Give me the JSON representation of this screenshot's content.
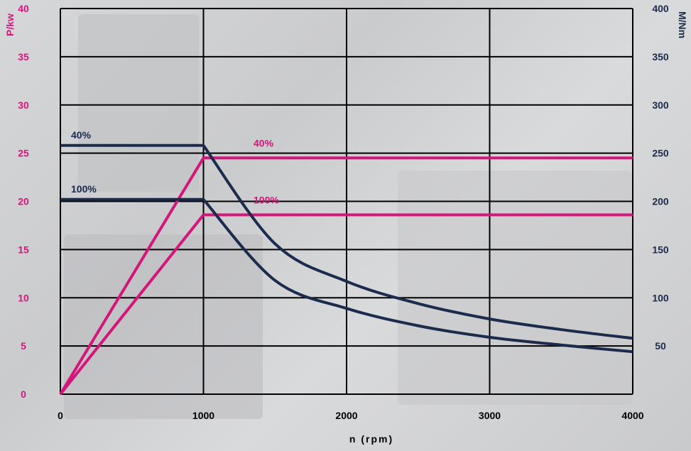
{
  "colors": {
    "power": "#d4167a",
    "torque": "#1a2b4c",
    "grid": "#000000"
  },
  "chart_data": {
    "type": "line",
    "title": "",
    "xlabel": "n (rpm)",
    "ylabel_left": "P/kw",
    "ylabel_right": "M/Nm",
    "xlim": [
      0,
      4000
    ],
    "ylim_left": [
      0,
      40
    ],
    "ylim_right": [
      0,
      400
    ],
    "x_ticks": [
      "0",
      "1000",
      "2000",
      "3000",
      "4000"
    ],
    "y_left_ticks": [
      "0",
      "5",
      "10",
      "15",
      "20",
      "25",
      "30",
      "35",
      "40"
    ],
    "y_right_ticks": [
      "50",
      "100",
      "150",
      "200",
      "250",
      "300",
      "350",
      "400"
    ],
    "grid": true,
    "series": [
      {
        "name": "40%",
        "axis": "left",
        "color": "#d4167a",
        "x": [
          0,
          1000,
          4000
        ],
        "y": [
          0,
          24.5,
          24.5
        ]
      },
      {
        "name": "100%",
        "axis": "left",
        "color": "#d4167a",
        "x": [
          0,
          1000,
          4000
        ],
        "y": [
          0,
          18.6,
          18.6
        ]
      },
      {
        "name": "40%",
        "axis": "right",
        "color": "#1a2b4c",
        "x": [
          0,
          1000,
          1500,
          2000,
          2500,
          3000,
          3500,
          4000
        ],
        "y": [
          258,
          258,
          156,
          117,
          94,
          78,
          67,
          58
        ]
      },
      {
        "name": "100%",
        "axis": "right",
        "color": "#1a2b4c",
        "x": [
          0,
          1000,
          1500,
          2000,
          2500,
          3000,
          3500,
          4000
        ],
        "y": [
          202,
          202,
          118,
          89,
          71,
          59,
          51,
          44
        ]
      }
    ],
    "annotations": [
      {
        "text": "40%",
        "series": 2
      },
      {
        "text": "100%",
        "series": 3
      },
      {
        "text": "40%",
        "series": 0
      },
      {
        "text": "100%",
        "series": 1
      }
    ]
  }
}
